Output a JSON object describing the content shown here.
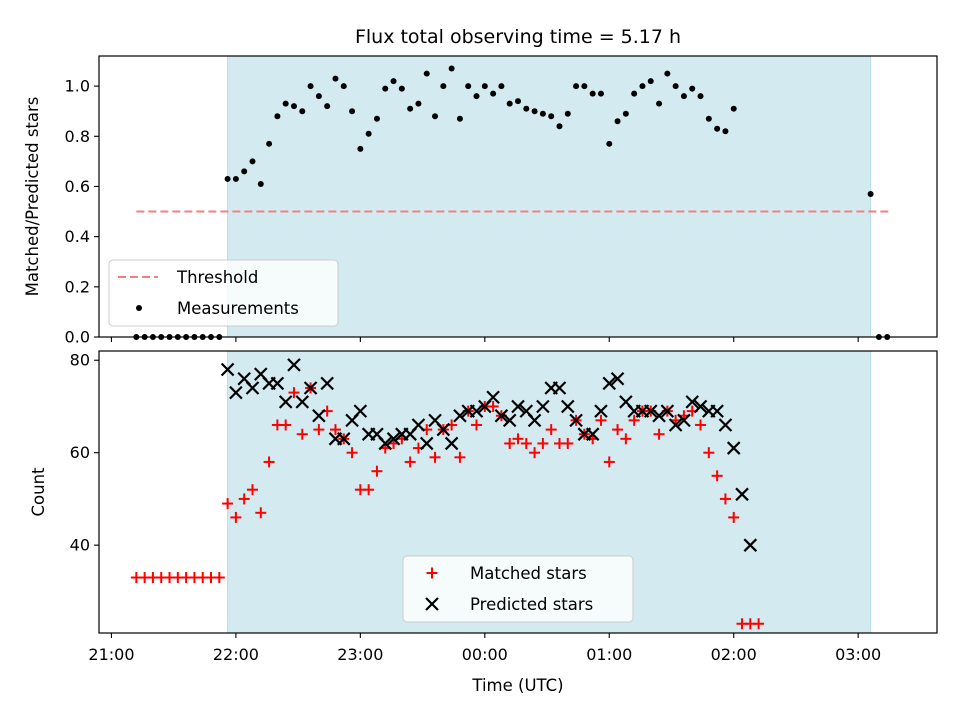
{
  "chart_data": [
    {
      "type": "scatter",
      "title": "Flux total observing time = 5.17 h",
      "ylabel": "Matched/Predicted stars",
      "xlim": [
        "20:54",
        "03:38"
      ],
      "ylim": [
        0,
        1.12
      ],
      "yticks": [
        "0.0",
        "0.2",
        "0.4",
        "0.6",
        "0.8",
        "1.0"
      ],
      "ytick_values": [
        0.0,
        0.2,
        0.4,
        0.6,
        0.8,
        1.0
      ],
      "observing_window": {
        "start": "21:56",
        "end": "03:06",
        "color": "#d3eaf0"
      },
      "threshold": {
        "value": 0.5,
        "x_start": "21:12",
        "x_end": "03:15",
        "style": "dashed",
        "color": "#f08080"
      },
      "legend": {
        "location": "lower-left",
        "entries": [
          {
            "label": "Threshold",
            "marker": "dashed-line",
            "color": "#f08080"
          },
          {
            "label": "Measurements",
            "marker": "dot",
            "color": "#000000"
          }
        ]
      },
      "series": [
        {
          "name": "Measurements",
          "color": "#000000",
          "points": [
            [
              "21:12",
              0
            ],
            [
              "21:16",
              0
            ],
            [
              "21:20",
              0
            ],
            [
              "21:24",
              0
            ],
            [
              "21:28",
              0
            ],
            [
              "21:32",
              0
            ],
            [
              "21:36",
              0
            ],
            [
              "21:40",
              0
            ],
            [
              "21:44",
              0
            ],
            [
              "21:48",
              0
            ],
            [
              "21:52",
              0
            ],
            [
              "21:56",
              0.63
            ],
            [
              "22:00",
              0.63
            ],
            [
              "22:04",
              0.66
            ],
            [
              "22:08",
              0.7
            ],
            [
              "22:12",
              0.61
            ],
            [
              "22:16",
              0.77
            ],
            [
              "22:20",
              0.88
            ],
            [
              "22:24",
              0.93
            ],
            [
              "22:28",
              0.92
            ],
            [
              "22:32",
              0.9
            ],
            [
              "22:36",
              1.0
            ],
            [
              "22:40",
              0.96
            ],
            [
              "22:44",
              0.92
            ],
            [
              "22:48",
              1.03
            ],
            [
              "22:52",
              1.0
            ],
            [
              "22:56",
              0.9
            ],
            [
              "23:00",
              0.75
            ],
            [
              "23:04",
              0.81
            ],
            [
              "23:08",
              0.87
            ],
            [
              "23:12",
              0.99
            ],
            [
              "23:16",
              1.02
            ],
            [
              "23:20",
              0.99
            ],
            [
              "23:24",
              0.91
            ],
            [
              "23:28",
              0.93
            ],
            [
              "23:32",
              1.05
            ],
            [
              "23:36",
              0.88
            ],
            [
              "23:40",
              1.0
            ],
            [
              "23:44",
              1.07
            ],
            [
              "23:48",
              0.87
            ],
            [
              "23:52",
              1.0
            ],
            [
              "23:56",
              0.96
            ],
            [
              "00:00",
              1.0
            ],
            [
              "00:04",
              0.97
            ],
            [
              "00:08",
              1.0
            ],
            [
              "00:12",
              0.93
            ],
            [
              "00:16",
              0.94
            ],
            [
              "00:20",
              0.91
            ],
            [
              "00:24",
              0.9
            ],
            [
              "00:28",
              0.89
            ],
            [
              "00:32",
              0.88
            ],
            [
              "00:36",
              0.84
            ],
            [
              "00:40",
              0.89
            ],
            [
              "00:44",
              1.0
            ],
            [
              "00:48",
              1.0
            ],
            [
              "00:52",
              0.97
            ],
            [
              "00:56",
              0.97
            ],
            [
              "01:00",
              0.77
            ],
            [
              "01:04",
              0.86
            ],
            [
              "01:08",
              0.89
            ],
            [
              "01:12",
              0.97
            ],
            [
              "01:16",
              1.0
            ],
            [
              "01:20",
              1.02
            ],
            [
              "01:24",
              0.93
            ],
            [
              "01:28",
              1.05
            ],
            [
              "01:32",
              1.0
            ],
            [
              "01:36",
              0.96
            ],
            [
              "01:40",
              0.99
            ],
            [
              "01:44",
              0.96
            ],
            [
              "01:48",
              0.87
            ],
            [
              "01:52",
              0.83
            ],
            [
              "01:56",
              0.82
            ],
            [
              "02:00",
              0.91
            ],
            [
              "03:06",
              0.57
            ],
            [
              "03:10",
              0
            ],
            [
              "03:14",
              0
            ]
          ]
        }
      ]
    },
    {
      "type": "scatter",
      "xlabel": "Time (UTC)",
      "ylabel": "Count",
      "xticks": [
        "21:00",
        "22:00",
        "23:00",
        "00:00",
        "01:00",
        "02:00",
        "03:00"
      ],
      "xlim": [
        "20:54",
        "03:38"
      ],
      "ylim": [
        21,
        82
      ],
      "yticks": [
        "40",
        "60",
        "80"
      ],
      "ytick_values": [
        40,
        60,
        80
      ],
      "observing_window": {
        "start": "21:56",
        "end": "03:06",
        "color": "#d3eaf0"
      },
      "legend": {
        "location": "lower-center",
        "entries": [
          {
            "label": "Matched stars",
            "marker": "plus",
            "color": "#ff0000"
          },
          {
            "label": "Predicted stars",
            "marker": "x",
            "color": "#000000"
          }
        ]
      },
      "series": [
        {
          "name": "Matched stars",
          "marker": "plus",
          "color": "#ff0000",
          "points": [
            [
              "21:12",
              33
            ],
            [
              "21:16",
              33
            ],
            [
              "21:20",
              33
            ],
            [
              "21:24",
              33
            ],
            [
              "21:28",
              33
            ],
            [
              "21:32",
              33
            ],
            [
              "21:36",
              33
            ],
            [
              "21:40",
              33
            ],
            [
              "21:44",
              33
            ],
            [
              "21:48",
              33
            ],
            [
              "21:52",
              33
            ],
            [
              "21:56",
              49
            ],
            [
              "22:00",
              46
            ],
            [
              "22:04",
              50
            ],
            [
              "22:08",
              52
            ],
            [
              "22:12",
              47
            ],
            [
              "22:16",
              58
            ],
            [
              "22:20",
              66
            ],
            [
              "22:24",
              66
            ],
            [
              "22:28",
              73
            ],
            [
              "22:32",
              64
            ],
            [
              "22:36",
              74
            ],
            [
              "22:40",
              65
            ],
            [
              "22:44",
              69
            ],
            [
              "22:48",
              65
            ],
            [
              "22:52",
              63
            ],
            [
              "22:56",
              60
            ],
            [
              "23:00",
              52
            ],
            [
              "23:04",
              52
            ],
            [
              "23:08",
              56
            ],
            [
              "23:12",
              61
            ],
            [
              "23:16",
              62
            ],
            [
              "23:20",
              63
            ],
            [
              "23:24",
              58
            ],
            [
              "23:28",
              61
            ],
            [
              "23:32",
              65
            ],
            [
              "23:36",
              59
            ],
            [
              "23:40",
              65
            ],
            [
              "23:44",
              66
            ],
            [
              "23:48",
              59
            ],
            [
              "23:52",
              69
            ],
            [
              "23:56",
              66
            ],
            [
              "00:00",
              70
            ],
            [
              "00:04",
              70
            ],
            [
              "00:08",
              68
            ],
            [
              "00:12",
              62
            ],
            [
              "00:16",
              63
            ],
            [
              "00:20",
              62
            ],
            [
              "00:24",
              60
            ],
            [
              "00:28",
              62
            ],
            [
              "00:32",
              65
            ],
            [
              "00:36",
              62
            ],
            [
              "00:40",
              62
            ],
            [
              "00:44",
              67
            ],
            [
              "00:48",
              64
            ],
            [
              "00:52",
              63
            ],
            [
              "00:56",
              67
            ],
            [
              "01:00",
              58
            ],
            [
              "01:04",
              65
            ],
            [
              "01:08",
              63
            ],
            [
              "01:12",
              67
            ],
            [
              "01:16",
              69
            ],
            [
              "01:20",
              69
            ],
            [
              "01:24",
              64
            ],
            [
              "01:28",
              69
            ],
            [
              "01:32",
              67
            ],
            [
              "01:36",
              68
            ],
            [
              "01:40",
              69
            ],
            [
              "01:44",
              66
            ],
            [
              "01:48",
              60
            ],
            [
              "01:52",
              55
            ],
            [
              "01:56",
              50
            ],
            [
              "02:00",
              46
            ],
            [
              "02:04",
              23
            ],
            [
              "02:08",
              23
            ],
            [
              "02:12",
              23
            ]
          ]
        },
        {
          "name": "Predicted stars",
          "marker": "x",
          "color": "#000000",
          "points": [
            [
              "21:56",
              78
            ],
            [
              "22:00",
              73
            ],
            [
              "22:04",
              76
            ],
            [
              "22:08",
              74
            ],
            [
              "22:12",
              77
            ],
            [
              "22:16",
              75
            ],
            [
              "22:20",
              75
            ],
            [
              "22:24",
              71
            ],
            [
              "22:28",
              79
            ],
            [
              "22:32",
              71
            ],
            [
              "22:36",
              74
            ],
            [
              "22:40",
              68
            ],
            [
              "22:44",
              75
            ],
            [
              "22:48",
              63
            ],
            [
              "22:52",
              63
            ],
            [
              "22:56",
              67
            ],
            [
              "23:00",
              69
            ],
            [
              "23:04",
              64
            ],
            [
              "23:08",
              64
            ],
            [
              "23:12",
              62
            ],
            [
              "23:16",
              63
            ],
            [
              "23:20",
              64
            ],
            [
              "23:24",
              64
            ],
            [
              "23:28",
              66
            ],
            [
              "23:32",
              62
            ],
            [
              "23:36",
              67
            ],
            [
              "23:40",
              65
            ],
            [
              "23:44",
              62
            ],
            [
              "23:48",
              68
            ],
            [
              "23:52",
              69
            ],
            [
              "23:56",
              69
            ],
            [
              "00:00",
              70
            ],
            [
              "00:04",
              72
            ],
            [
              "00:08",
              68
            ],
            [
              "00:12",
              67
            ],
            [
              "00:16",
              70
            ],
            [
              "00:20",
              69
            ],
            [
              "00:24",
              67
            ],
            [
              "00:28",
              70
            ],
            [
              "00:32",
              74
            ],
            [
              "00:36",
              74
            ],
            [
              "00:40",
              70
            ],
            [
              "00:44",
              67
            ],
            [
              "00:48",
              64
            ],
            [
              "00:52",
              64
            ],
            [
              "00:56",
              69
            ],
            [
              "01:00",
              75
            ],
            [
              "01:04",
              76
            ],
            [
              "01:08",
              71
            ],
            [
              "01:12",
              69
            ],
            [
              "01:16",
              69
            ],
            [
              "01:20",
              69
            ],
            [
              "01:24",
              68
            ],
            [
              "01:28",
              69
            ],
            [
              "01:32",
              66
            ],
            [
              "01:36",
              67
            ],
            [
              "01:40",
              71
            ],
            [
              "01:44",
              70
            ],
            [
              "01:48",
              69
            ],
            [
              "01:52",
              69
            ],
            [
              "01:56",
              66
            ],
            [
              "02:00",
              61
            ],
            [
              "02:04",
              51
            ],
            [
              "02:08",
              40
            ]
          ]
        }
      ]
    }
  ]
}
